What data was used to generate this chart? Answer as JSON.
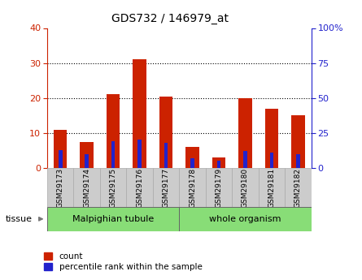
{
  "title": "GDS732 / 146979_at",
  "categories": [
    "GSM29173",
    "GSM29174",
    "GSM29175",
    "GSM29176",
    "GSM29177",
    "GSM29178",
    "GSM29179",
    "GSM29180",
    "GSM29181",
    "GSM29182"
  ],
  "count_values": [
    11,
    7.5,
    21,
    31,
    20.5,
    6,
    3,
    20,
    17,
    15
  ],
  "percentile_values": [
    13,
    10,
    19,
    20.5,
    18,
    7,
    5,
    12,
    11,
    10
  ],
  "groups": [
    {
      "label": "Malpighian tubule",
      "start": 0,
      "end": 5
    },
    {
      "label": "whole organism",
      "start": 5,
      "end": 10
    }
  ],
  "left_ylim": [
    0,
    40
  ],
  "right_ylim": [
    0,
    100
  ],
  "left_yticks": [
    0,
    10,
    20,
    30,
    40
  ],
  "right_yticks": [
    0,
    25,
    50,
    75,
    100
  ],
  "right_yticklabels": [
    "0",
    "25",
    "50",
    "75",
    "100%"
  ],
  "bar_color": "#cc2200",
  "blue_color": "#2222cc",
  "grid_color": "#000000",
  "tick_label_bg": "#cccccc",
  "group_bg": "#88dd77",
  "legend_count_label": "count",
  "legend_percentile_label": "percentile rank within the sample",
  "bar_width": 0.5,
  "blue_bar_width": 0.15
}
